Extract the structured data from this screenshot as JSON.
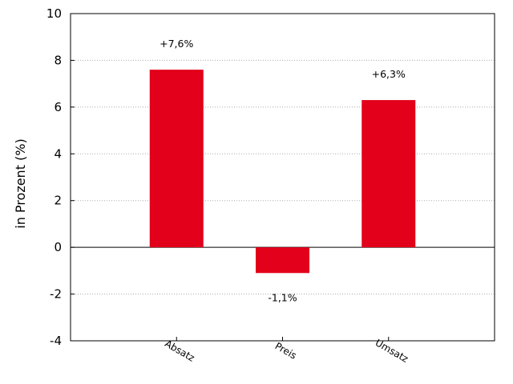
{
  "chart_data": {
    "type": "bar",
    "categories": [
      "Absatz",
      "Preis",
      "Umsatz"
    ],
    "values": [
      7.6,
      -1.1,
      6.3
    ],
    "data_labels": [
      "+7,6%",
      "-1,1%",
      "+6,3%"
    ],
    "title": "",
    "xlabel": "",
    "ylabel": "in Prozent (%)",
    "ylim": [
      -4,
      10
    ],
    "yticks": [
      -4,
      -2,
      0,
      2,
      4,
      6,
      8,
      10
    ],
    "ytick_labels": [
      "-4",
      "-2",
      "0",
      "2",
      "4",
      "6",
      "8",
      "10"
    ],
    "grid": true,
    "bar_color": "#e2001a"
  }
}
